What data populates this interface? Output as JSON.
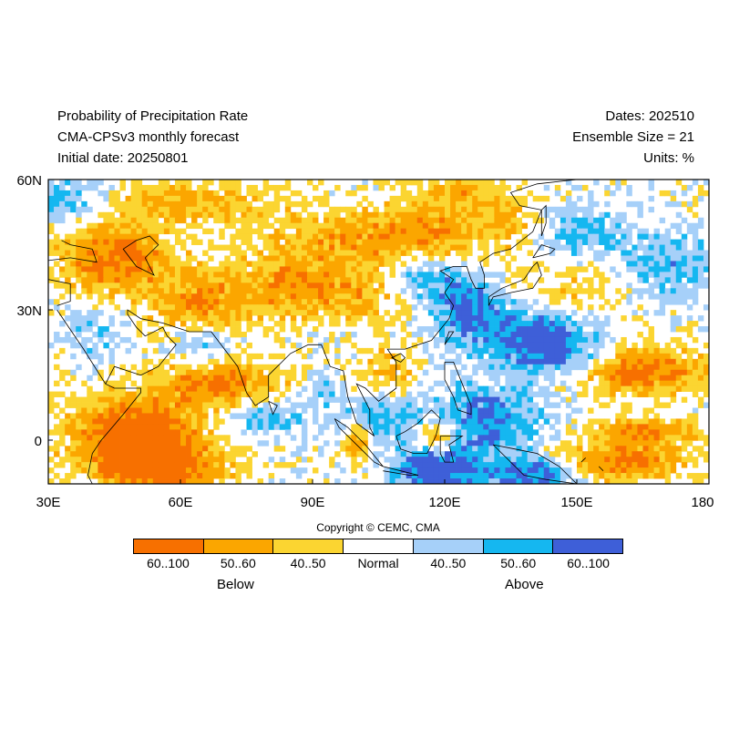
{
  "header": {
    "title": "Probability of Precipitation Rate",
    "model": "CMA-CPSv3 monthly forecast",
    "initial_date": "Initial date: 20250801",
    "dates": "Dates: 202510",
    "ensemble": "Ensemble Size = 21",
    "units": "Units: %"
  },
  "map": {
    "lat_labels": [
      "60N",
      "30N",
      "0"
    ],
    "lon_labels": [
      "30E",
      "60E",
      "90E",
      "120E",
      "150E",
      "180"
    ],
    "lon_range": [
      30,
      180
    ],
    "lat_range": [
      -10,
      60
    ],
    "colors": {
      "below_60_100": "#f77000",
      "below_50_60": "#fba600",
      "below_40_50": "#fbd531",
      "normal": "#ffffff",
      "above_40_50": "#a6d0f9",
      "above_50_60": "#15b7f0",
      "above_60_100": "#3e5fd8"
    }
  },
  "copyright": "Copyright © CEMC, CMA",
  "legend": {
    "segments": [
      {
        "label": "60..100",
        "color": "#f77000"
      },
      {
        "label": "50..60",
        "color": "#fba600"
      },
      {
        "label": "40..50",
        "color": "#fbd531"
      },
      {
        "label": "Normal",
        "color": "#ffffff"
      },
      {
        "label": "40..50",
        "color": "#a6d0f9"
      },
      {
        "label": "50..60",
        "color": "#15b7f0"
      },
      {
        "label": "60..100",
        "color": "#3e5fd8"
      }
    ],
    "below_label": "Below",
    "above_label": "Above"
  }
}
